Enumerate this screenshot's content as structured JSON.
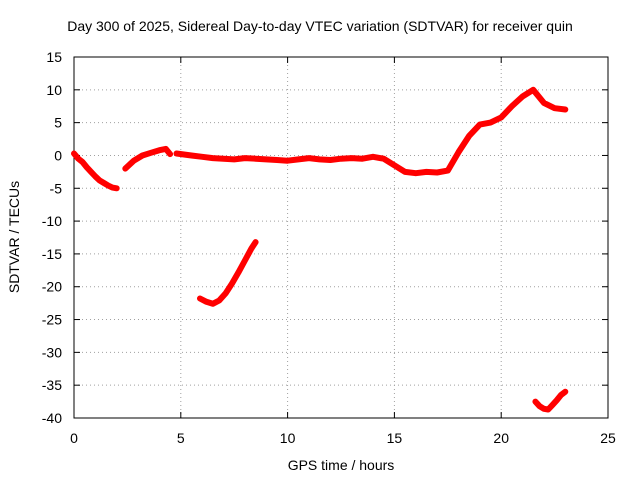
{
  "chart_data": {
    "type": "scatter",
    "title": "Day 300 of 2025, Sidereal Day-to-day VTEC variation (SDTVAR) for receiver quin",
    "xlabel": "GPS time / hours",
    "ylabel": "SDTVAR / TECUs",
    "xlim": [
      0,
      25
    ],
    "ylim": [
      -40,
      15
    ],
    "xticks": [
      "0",
      "5",
      "10",
      "15",
      "20",
      "25"
    ],
    "yticks": [
      "15",
      "10",
      "5",
      "0",
      "-5",
      "-10",
      "-15",
      "-20",
      "-25",
      "-30",
      "-35",
      "-40"
    ],
    "grid": true,
    "series_color": "#ff0000",
    "series": [
      {
        "name": "main",
        "x": [
          0.0,
          0.2,
          0.4,
          0.6,
          0.8,
          1.0,
          1.2,
          1.4,
          1.6,
          1.8,
          2.0
        ],
        "y": [
          0.3,
          -0.5,
          -1.0,
          -1.8,
          -2.5,
          -3.2,
          -3.8,
          -4.2,
          -4.6,
          -4.9,
          -5.0
        ]
      },
      {
        "name": "main",
        "x": [
          2.4,
          2.8,
          3.2,
          3.6,
          4.0,
          4.3,
          4.5
        ],
        "y": [
          -2.0,
          -0.8,
          0.0,
          0.4,
          0.8,
          1.0,
          0.2
        ]
      },
      {
        "name": "main",
        "x": [
          4.8,
          5.5,
          6.0,
          6.5,
          7.0,
          7.5,
          8.0,
          8.5,
          9.0,
          9.5,
          10.0,
          10.5,
          11.0,
          11.5,
          12.0,
          12.5,
          13.0,
          13.5,
          14.0,
          14.5,
          15.0,
          15.5,
          16.0,
          16.5,
          17.0,
          17.5,
          18.0,
          18.5,
          19.0,
          19.5,
          20.0,
          20.5,
          21.0,
          21.5,
          22.0,
          22.5,
          23.0
        ],
        "y": [
          0.3,
          0.0,
          -0.2,
          -0.4,
          -0.5,
          -0.6,
          -0.4,
          -0.5,
          -0.6,
          -0.7,
          -0.8,
          -0.6,
          -0.4,
          -0.6,
          -0.7,
          -0.5,
          -0.4,
          -0.5,
          -0.2,
          -0.5,
          -1.5,
          -2.5,
          -2.7,
          -2.5,
          -2.6,
          -2.3,
          0.5,
          3.0,
          4.7,
          5.0,
          5.8,
          7.5,
          9.0,
          10.0,
          8.0,
          7.2,
          7.0
        ]
      },
      {
        "name": "main",
        "x": [
          5.9,
          6.2,
          6.5,
          6.8,
          7.1,
          7.4,
          7.7,
          8.0,
          8.3,
          8.5
        ],
        "y": [
          -21.8,
          -22.3,
          -22.6,
          -22.1,
          -21.0,
          -19.5,
          -17.8,
          -16.0,
          -14.2,
          -13.2
        ]
      },
      {
        "name": "main",
        "x": [
          21.6,
          21.8,
          22.0,
          22.2,
          22.4,
          22.6,
          22.8,
          23.0
        ],
        "y": [
          -37.5,
          -38.2,
          -38.6,
          -38.7,
          -38.0,
          -37.3,
          -36.5,
          -36.0
        ]
      }
    ]
  }
}
